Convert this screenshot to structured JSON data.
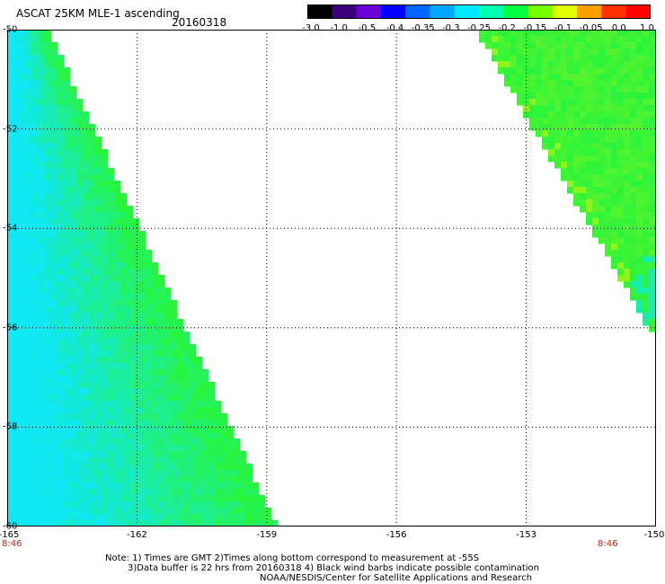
{
  "header": {
    "title": "ASCAT 25KM MLE-1 ascending",
    "date": "20160318"
  },
  "colorbar": {
    "tick_labels": [
      "-3.0",
      "-1.0",
      "-0.5",
      "-0.4",
      "-0.35",
      "-0.3",
      "-0.25",
      "-0.2",
      "-0.15",
      "-0.1",
      "-0.05",
      "0.0",
      "1.0"
    ],
    "colors": [
      "#000000",
      "#3a0078",
      "#6a00d8",
      "#0000ff",
      "#0066ff",
      "#00a8ff",
      "#00e8ff",
      "#00ffb0",
      "#00ff40",
      "#78ff00",
      "#e0ff00",
      "#ffa000",
      "#ff3000",
      "#ff0000"
    ]
  },
  "map": {
    "lat_range": [
      -60,
      -50
    ],
    "lon_range": [
      -165,
      -150
    ],
    "lat_ticks": [
      "-50",
      "-52",
      "-54",
      "-56",
      "-58",
      "-60"
    ],
    "lon_ticks": [
      "-165",
      "-162",
      "-159",
      "-156",
      "-153",
      "-150"
    ],
    "gridlines": "dotted",
    "time_labels": [
      "8:46",
      "8:46"
    ],
    "colors": {
      "cyan": "#10e8f4",
      "green": "#28f43c",
      "yellow_green": "#a8f414",
      "orange": "#f0a000",
      "grid": "#000000"
    }
  },
  "footer": {
    "note_line1": "Note: 1) Times are GMT 2)Times along bottom correspond to measurement at -55S",
    "note_line2": "3)Data buffer is 22 hrs from 20160318 4) Black wind barbs indicate possible contamination",
    "credit": "NOAA/NESDIS/Center for Satellite Applications and Research"
  }
}
